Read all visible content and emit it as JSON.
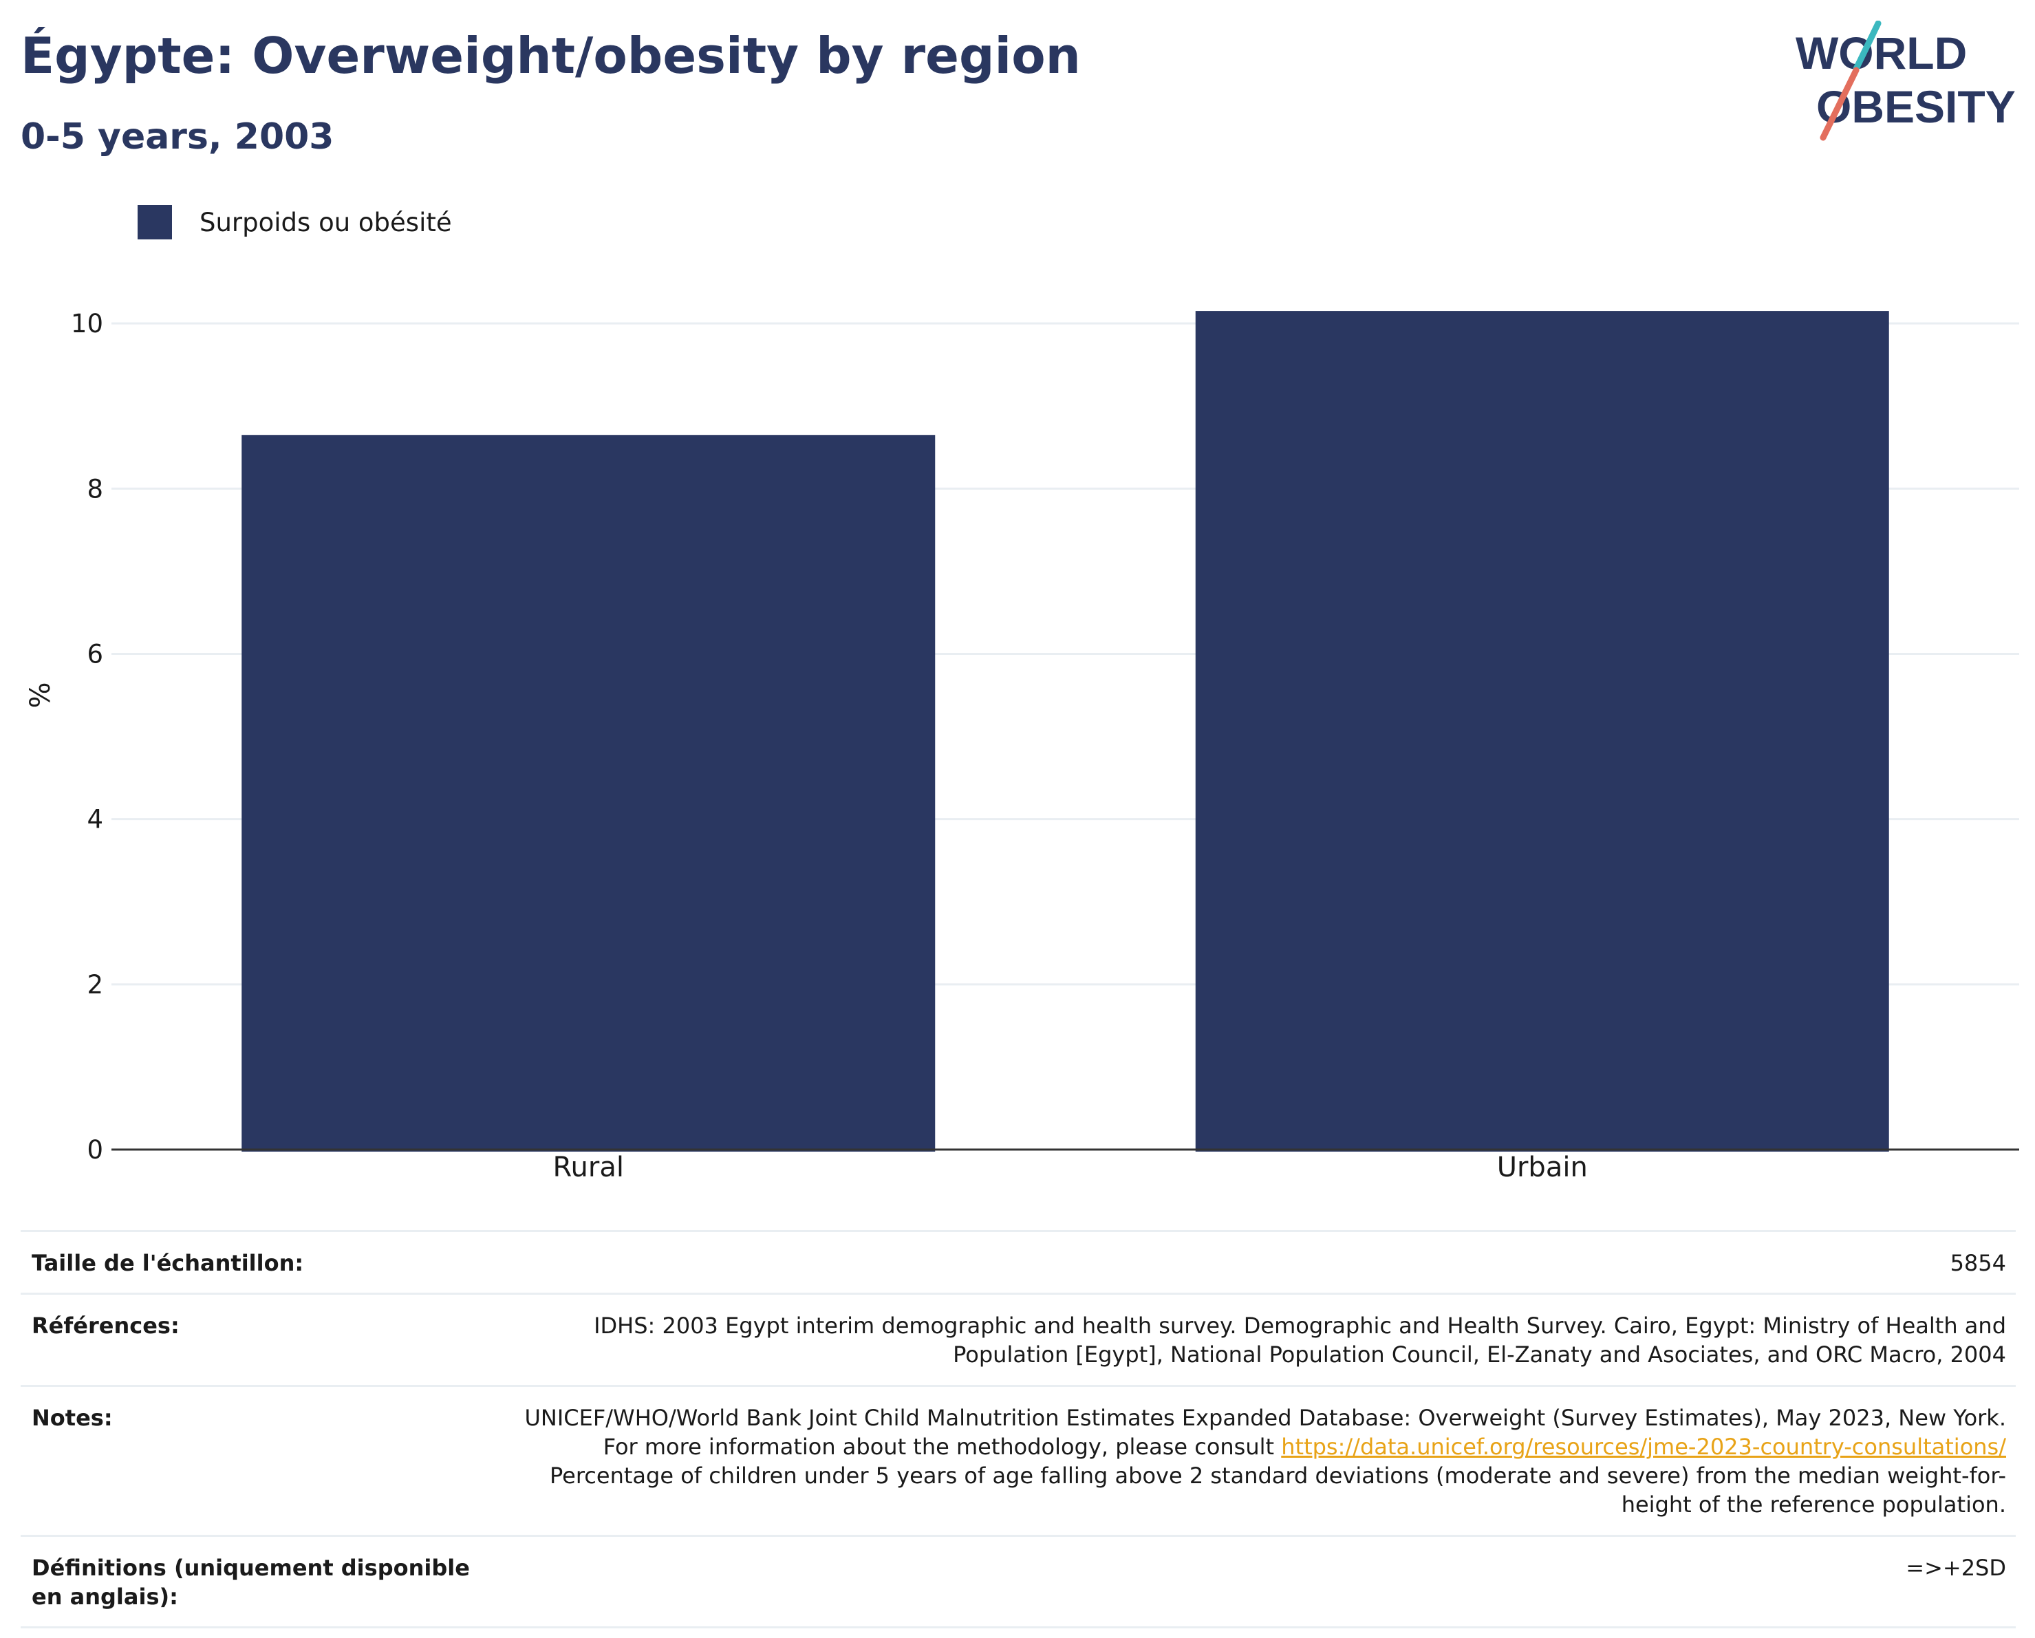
{
  "header": {
    "title": "Égypte: Overweight/obesity by region",
    "subtitle": "0-5 years, 2003"
  },
  "logo": {
    "line1": "WORLD",
    "line2": "OBESITY",
    "colors": {
      "text": "#2a3760",
      "slash_teal": "#3bb8bf",
      "slash_red": "#e36e5d"
    }
  },
  "colors": {
    "bar": "#2a3761",
    "grid": "#e9eef2",
    "axis": "#333333",
    "link": "#e8a317"
  },
  "chart_data": {
    "type": "bar",
    "categories": [
      "Rural",
      "Urbain"
    ],
    "series": [
      {
        "name": "Surpoids ou obésité",
        "values": [
          8.65,
          10.15
        ]
      }
    ],
    "ylabel": "%",
    "xlabel": "",
    "ylim": [
      0,
      11
    ],
    "yticks": [
      0,
      2,
      4,
      6,
      8,
      10
    ],
    "grid": true,
    "legend": "top-left"
  },
  "meta": {
    "sample_size": {
      "label": "Taille de l'échantillon:",
      "value": "5854"
    },
    "references": {
      "label": "Références:",
      "value": "IDHS: 2003 Egypt interim demographic and health survey. Demographic and Health Survey. Cairo, Egypt: Ministry of Health and Population [Egypt], National Population Council, El-Zanaty and Asociates, and ORC Macro, 2004"
    },
    "notes": {
      "label": "Notes:",
      "text_before": "UNICEF/WHO/World Bank Joint Child Malnutrition Estimates Expanded Database: Overweight (Survey Estimates), May 2023, New York. For more information about the methodology, please consult ",
      "link": "https://data.unicef.org/resources/jme-2023-country-consultations/",
      "text_after": " Percentage of children under 5 years of age falling above 2 standard deviations (moderate and severe) from the median weight-for-height of the reference population."
    },
    "definitions": {
      "label": "Définitions (uniquement disponible en anglais):",
      "value": "=>+2SD"
    }
  }
}
